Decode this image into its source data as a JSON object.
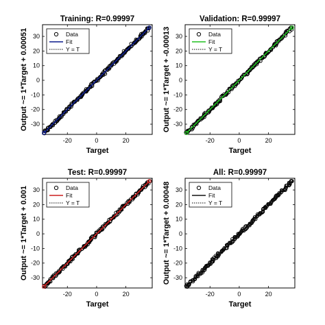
{
  "chart_data": [
    {
      "type": "scatter",
      "title": "Training: R=0.99997",
      "xlabel": "Target",
      "ylabel": "Output ~= 1*Target + 0.00051",
      "xlim": [
        -37,
        38
      ],
      "ylim": [
        -37,
        38
      ],
      "xticks": [
        -20,
        0,
        20
      ],
      "yticks": [
        -30,
        -20,
        -10,
        0,
        10,
        20,
        30
      ],
      "fit_color": "#0a1a8c",
      "fit": {
        "slope": 1,
        "intercept": 0.00051
      },
      "series": [
        {
          "name": "Data",
          "x": [
            -36,
            36
          ],
          "y": [
            -36,
            36
          ]
        },
        {
          "name": "Fit",
          "x": [
            -36,
            36
          ],
          "y": [
            -36,
            36
          ]
        },
        {
          "name": "Y = T",
          "x": [
            -36,
            36
          ],
          "y": [
            -36,
            36
          ]
        }
      ]
    },
    {
      "type": "scatter",
      "title": "Validation: R=0.99997",
      "xlabel": "Target",
      "ylabel": "Output ~= 1*Target + -0.00013",
      "xlim": [
        -37,
        38
      ],
      "ylim": [
        -37,
        38
      ],
      "xticks": [
        -20,
        0,
        20
      ],
      "yticks": [
        -30,
        -20,
        -10,
        0,
        10,
        20,
        30
      ],
      "fit_color": "#1fbf1f",
      "fit": {
        "slope": 1,
        "intercept": -0.00013
      },
      "series": [
        {
          "name": "Data",
          "x": [
            -36,
            36
          ],
          "y": [
            -36,
            36
          ]
        },
        {
          "name": "Fit",
          "x": [
            -36,
            36
          ],
          "y": [
            -36,
            36
          ]
        },
        {
          "name": "Y = T",
          "x": [
            -36,
            36
          ],
          "y": [
            -36,
            36
          ]
        }
      ]
    },
    {
      "type": "scatter",
      "title": "Test: R=0.99997",
      "xlabel": "Target",
      "ylabel": "Output ~= 1*Target + 0.001",
      "xlim": [
        -37,
        38
      ],
      "ylim": [
        -37,
        38
      ],
      "xticks": [
        -20,
        0,
        20
      ],
      "yticks": [
        -30,
        -20,
        -10,
        0,
        10,
        20,
        30
      ],
      "fit_color": "#cc1f1f",
      "fit": {
        "slope": 1,
        "intercept": 0.001
      },
      "series": [
        {
          "name": "Data",
          "x": [
            -36,
            36
          ],
          "y": [
            -36,
            36
          ]
        },
        {
          "name": "Fit",
          "x": [
            -36,
            36
          ],
          "y": [
            -36,
            36
          ]
        },
        {
          "name": "Y = T",
          "x": [
            -36,
            36
          ],
          "y": [
            -36,
            36
          ]
        }
      ]
    },
    {
      "type": "scatter",
      "title": "All: R=0.99997",
      "xlabel": "Target",
      "ylabel": "Output ~= 1*Target + 0.00048",
      "xlim": [
        -37,
        38
      ],
      "ylim": [
        -37,
        38
      ],
      "xticks": [
        -20,
        0,
        20
      ],
      "yticks": [
        -30,
        -20,
        -10,
        0,
        10,
        20,
        30
      ],
      "fit_color": "#111111",
      "fit": {
        "slope": 1,
        "intercept": 0.00048
      },
      "series": [
        {
          "name": "Data",
          "x": [
            -36,
            36
          ],
          "y": [
            -36,
            36
          ]
        },
        {
          "name": "Fit",
          "x": [
            -36,
            36
          ],
          "y": [
            -36,
            36
          ]
        },
        {
          "name": "Y = T",
          "x": [
            -36,
            36
          ],
          "y": [
            -36,
            36
          ]
        }
      ]
    }
  ]
}
